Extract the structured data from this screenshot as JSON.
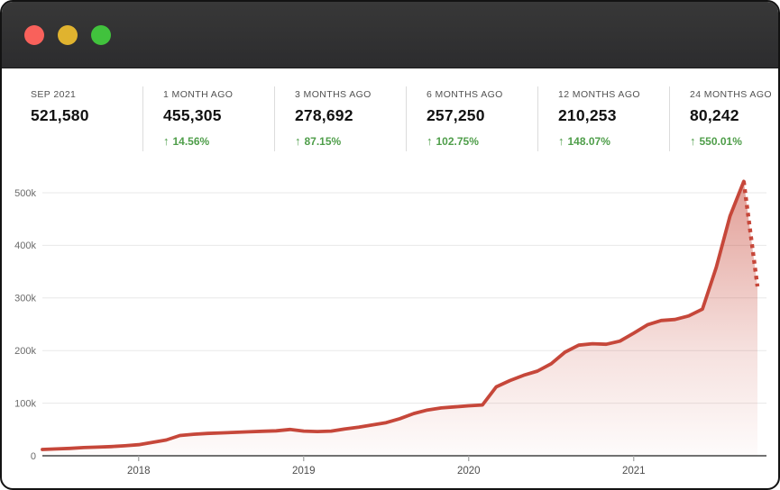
{
  "window": {
    "titlebar": {
      "background": "#303032",
      "buttons": [
        {
          "name": "close",
          "color": "#f9615b"
        },
        {
          "name": "minimize",
          "color": "#e0b32f"
        },
        {
          "name": "zoom",
          "color": "#41c23d"
        }
      ]
    }
  },
  "stats": {
    "up_arrow": "↑",
    "positive_color": "#4f9e4a",
    "items": [
      {
        "label": "SEP 2021",
        "value": "521,580",
        "change": null
      },
      {
        "label": "1 MONTH AGO",
        "value": "455,305",
        "change": "14.56%"
      },
      {
        "label": "3 MONTHS AGO",
        "value": "278,692",
        "change": "87.15%"
      },
      {
        "label": "6 MONTHS AGO",
        "value": "257,250",
        "change": "102.75%"
      },
      {
        "label": "12 MONTHS AGO",
        "value": "210,253",
        "change": "148.07%"
      },
      {
        "label": "24 MONTHS AGO",
        "value": "80,242",
        "change": "550.01%"
      }
    ]
  },
  "chart_data": {
    "type": "area",
    "title": "",
    "xlabel": "",
    "ylabel": "",
    "ylim": [
      0,
      555000
    ],
    "grid": true,
    "legend": "none",
    "x": [
      "Jun 2017",
      "Jul 2017",
      "Aug 2017",
      "Sep 2017",
      "Oct 2017",
      "Nov 2017",
      "Dec 2017",
      "Jan 2018",
      "Feb 2018",
      "Mar 2018",
      "Apr 2018",
      "May 2018",
      "Jun 2018",
      "Jul 2018",
      "Aug 2018",
      "Sep 2018",
      "Oct 2018",
      "Nov 2018",
      "Dec 2018",
      "Jan 2019",
      "Feb 2019",
      "Mar 2019",
      "Apr 2019",
      "May 2019",
      "Jun 2019",
      "Jul 2019",
      "Aug 2019",
      "Sep 2019",
      "Oct 2019",
      "Nov 2019",
      "Dec 2019",
      "Jan 2020",
      "Feb 2020",
      "Mar 2020",
      "Apr 2020",
      "May 2020",
      "Jun 2020",
      "Jul 2020",
      "Aug 2020",
      "Sep 2020",
      "Oct 2020",
      "Nov 2020",
      "Dec 2020",
      "Jan 2021",
      "Feb 2021",
      "Mar 2021",
      "Apr 2021",
      "May 2021",
      "Jun 2021",
      "Jul 2021",
      "Aug 2021",
      "Sep 2021"
    ],
    "values": [
      12000,
      13000,
      14000,
      15500,
      16500,
      17500,
      19000,
      21000,
      25500,
      30000,
      38500,
      41000,
      42500,
      43500,
      44500,
      45500,
      46500,
      47500,
      50000,
      47000,
      46000,
      47000,
      51000,
      54500,
      58500,
      63000,
      70500,
      80242,
      87000,
      91000,
      93000,
      95000,
      96500,
      131000,
      143000,
      153000,
      161000,
      175000,
      197000,
      210253,
      213000,
      212000,
      218000,
      233000,
      249000,
      257250,
      259000,
      266000,
      278692,
      358000,
      455305,
      521580
    ],
    "dotted_projection": {
      "x": [
        "Sep 2021",
        "Oct 2021"
      ],
      "values": [
        521580,
        322000
      ]
    },
    "x_ticks": [
      {
        "label": "2018",
        "index": 7
      },
      {
        "label": "2019",
        "index": 19
      },
      {
        "label": "2020",
        "index": 31
      },
      {
        "label": "2021",
        "index": 43
      }
    ],
    "y_tick_labels": [
      "0",
      "100k",
      "200k",
      "300k",
      "400k",
      "500k"
    ],
    "y_tick_step": 100000,
    "colors": {
      "line": "#c6473a",
      "fill_top": "rgba(198,68,53,0.52)",
      "fill_mid": "rgba(198,68,53,0.16)",
      "fill_bottom": "rgba(198,68,53,0.02)",
      "gridline": "#e8e8e8",
      "axis": "#434343",
      "tick": "#a8a8a8",
      "y_label": "#6a6a6a",
      "x_label": "#4d4d4d"
    }
  }
}
